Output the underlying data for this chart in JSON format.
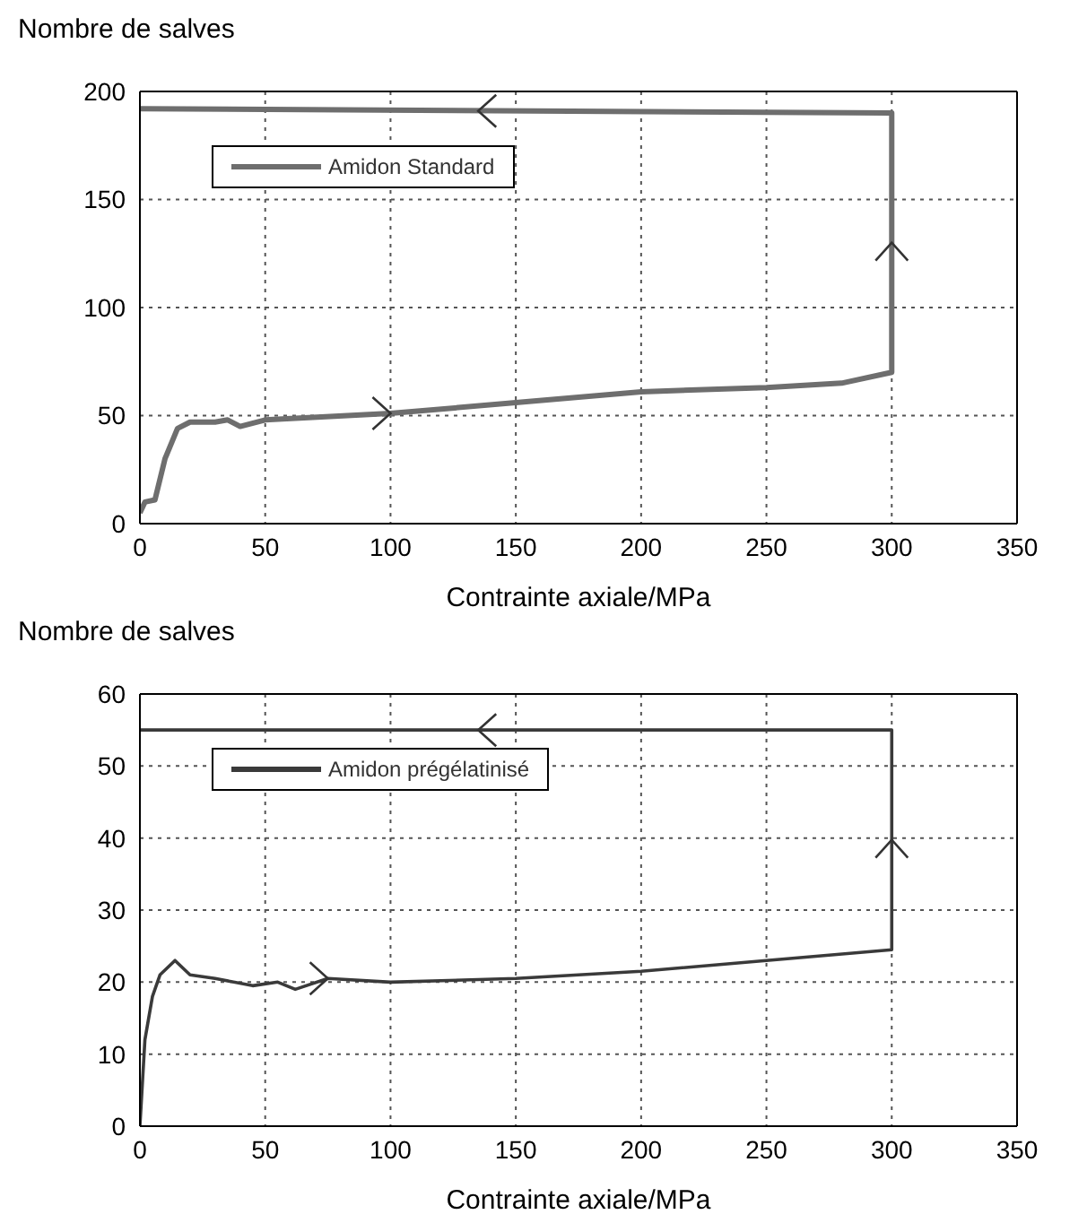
{
  "chart_data": [
    {
      "type": "line",
      "ylabel": "Nombre de salves",
      "xlabel": "Contrainte axiale/MPa",
      "xlim": [
        0,
        350
      ],
      "xticks": [
        0,
        50,
        100,
        150,
        200,
        250,
        300,
        350
      ],
      "ylim": [
        0,
        200
      ],
      "yticks": [
        0,
        50,
        100,
        150,
        200
      ],
      "grid": true,
      "legend": "top left",
      "marker": "none",
      "line_style": "solid",
      "series": [
        {
          "name": "Amidon Standard",
          "color": "#6e6e6e",
          "x": [
            0,
            2,
            6,
            10,
            15,
            20,
            30,
            35,
            40,
            50,
            100,
            150,
            200,
            250,
            280,
            300,
            300,
            0
          ],
          "values": [
            5,
            10,
            11,
            30,
            44,
            47,
            47,
            48,
            45,
            48,
            51,
            56,
            61,
            63,
            65,
            70,
            190,
            192
          ]
        }
      ]
    },
    {
      "type": "line",
      "ylabel": "Nombre de salves",
      "xlabel": "Contrainte axiale/MPa",
      "xlim": [
        0,
        350
      ],
      "xticks": [
        0,
        50,
        100,
        150,
        200,
        250,
        300,
        350
      ],
      "ylim": [
        0,
        60
      ],
      "yticks": [
        0,
        10,
        20,
        30,
        40,
        50,
        60
      ],
      "grid": true,
      "legend": "top left",
      "marker": "none",
      "line_style": "solid",
      "series": [
        {
          "name": "Amidon prégélatinisé",
          "color": "#3a3a3a",
          "x": [
            0,
            2,
            5,
            8,
            14,
            20,
            30,
            45,
            55,
            62,
            75,
            100,
            150,
            200,
            250,
            300,
            300,
            0
          ],
          "values": [
            0,
            12,
            18,
            21,
            23,
            21,
            20.5,
            19.5,
            20,
            19,
            20.5,
            20,
            20.5,
            21.5,
            23,
            24.5,
            55,
            55
          ]
        }
      ]
    }
  ]
}
